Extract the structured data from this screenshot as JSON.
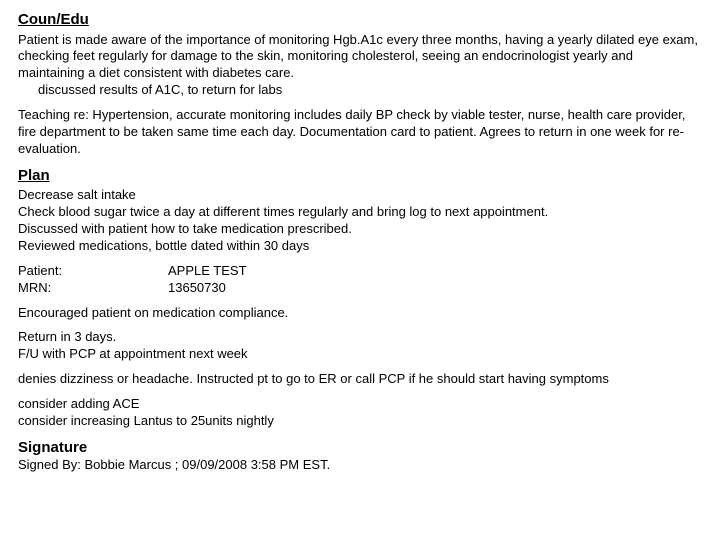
{
  "counEdu": {
    "heading": "Coun/Edu",
    "para1": "Patient is made aware of the importance of monitoring Hgb.A1c every three months, having a yearly dilated eye exam, checking feet regularly for damage to the skin, monitoring cholesterol, seeing an endocrinologist yearly and maintaining a diet consistent with diabetes care.",
    "para1_indent": "discussed results of A1C, to return for labs",
    "para2": "Teaching re:  Hypertension, accurate monitoring includes daily BP check by viable tester, nurse, health care provider, fire department to be taken same time each day.  Documentation card to patient.  Agrees to return in one week for re-evaluation."
  },
  "plan": {
    "heading": "Plan",
    "line1": "Decrease salt intake",
    "line2": "Check blood sugar twice a day at different times regularly and bring log to next appointment.",
    "line3": "Discussed with patient how to take medication prescribed.",
    "line4": "Reviewed medications, bottle dated within 30 days",
    "patient_label": "Patient:",
    "patient_value": "APPLE TEST",
    "mrn_label": "MRN:",
    "mrn_value": "13650730",
    "line5": "Encouraged patient on medication compliance.",
    "line6": "Return in 3 days.",
    "line7": "F/U with PCP at appointment next week",
    "line8": "denies dizziness or headache. Instructed pt to go to ER or call PCP if he should start having symptoms",
    "line9": "consider adding ACE",
    "line10": "consider  increasing Lantus to 25units nightly"
  },
  "signature": {
    "heading": "Signature",
    "line": "Signed By:  Bobbie Marcus ; 09/09/2008 3:58 PM EST."
  }
}
